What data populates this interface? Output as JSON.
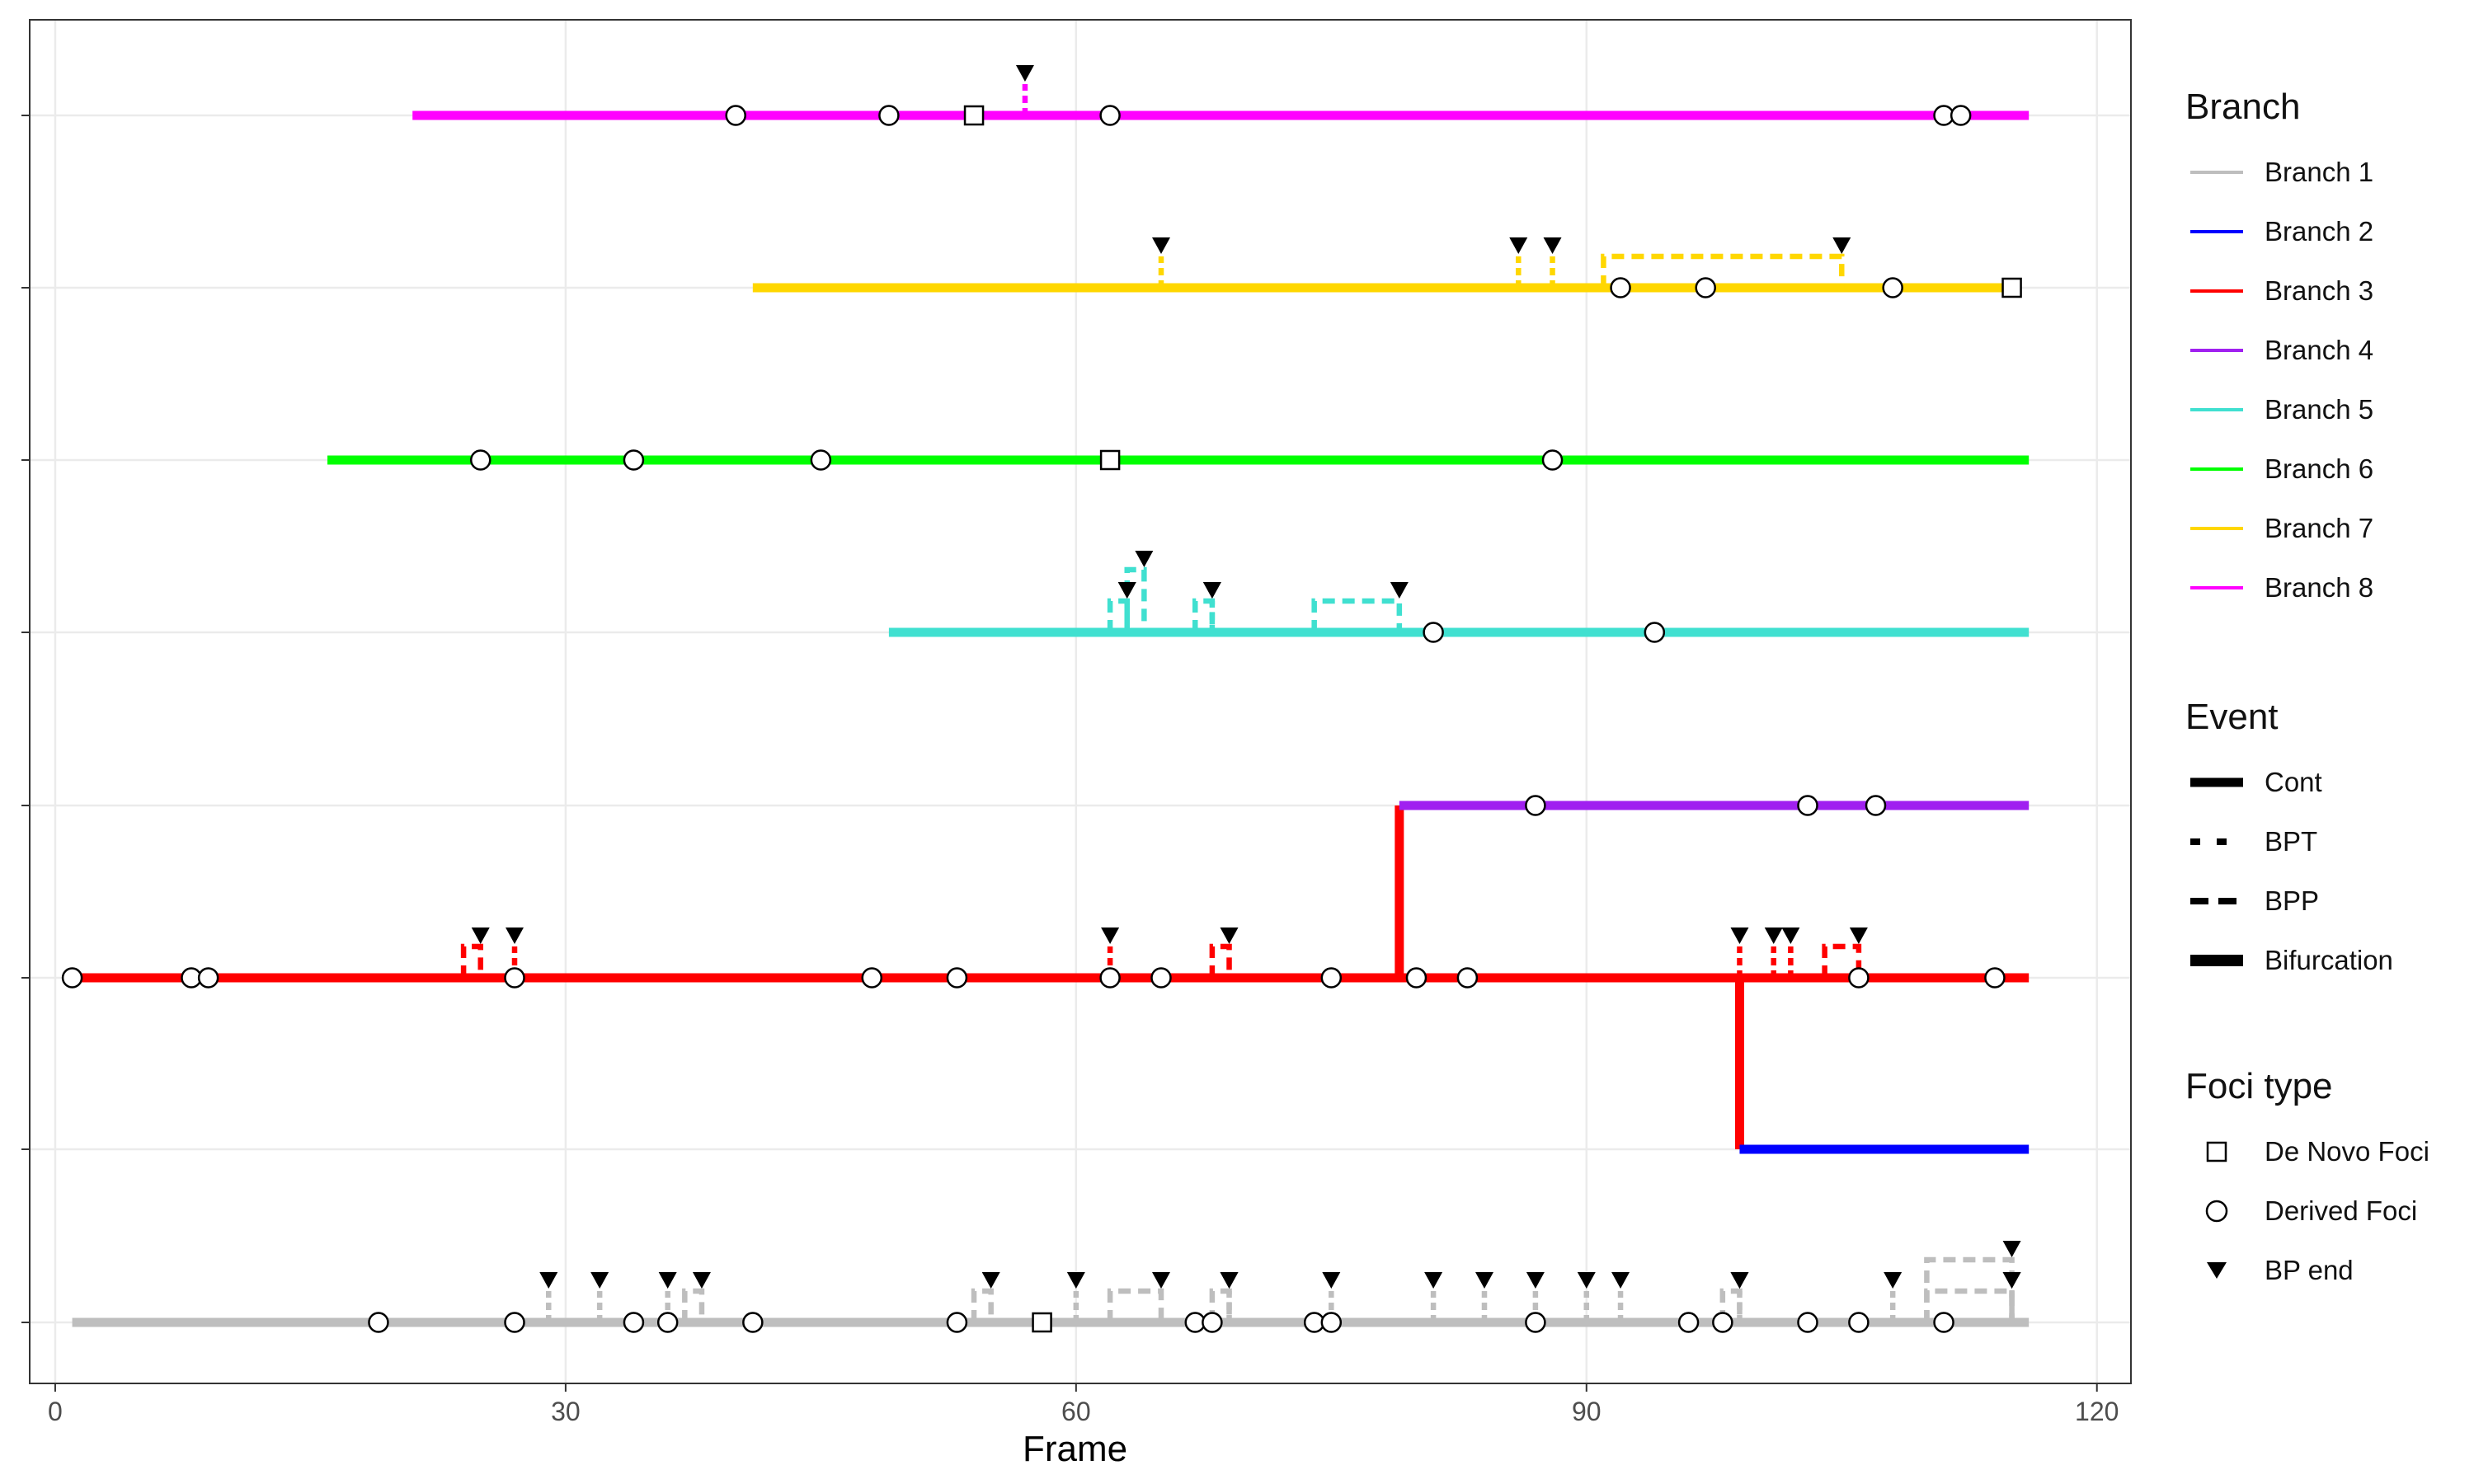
{
  "chart_data": {
    "type": "scatter",
    "xlabel": "Frame",
    "ylabel": "",
    "xlim": [
      -1.5,
      122
    ],
    "x_ticks": [
      0,
      30,
      60,
      90,
      120
    ],
    "grid": true,
    "legend_placement": "right",
    "branches": [
      {
        "name": "Branch 1",
        "color": "#BEBEBE",
        "level": 1,
        "start": 1,
        "end": 116
      },
      {
        "name": "Branch 2",
        "color": "#0000FF",
        "level": 2,
        "start": 99,
        "end": 116
      },
      {
        "name": "Branch 3",
        "color": "#FF0000",
        "level": 3,
        "start": 1,
        "end": 116
      },
      {
        "name": "Branch 4",
        "color": "#A020F0",
        "level": 4,
        "start": 79,
        "end": 116
      },
      {
        "name": "Branch 5",
        "color": "#40E0D0",
        "level": 5,
        "start": 49,
        "end": 116
      },
      {
        "name": "Branch 6",
        "color": "#00FF00",
        "level": 6,
        "start": 16,
        "end": 116
      },
      {
        "name": "Branch 7",
        "color": "#FFD700",
        "level": 7,
        "start": 41,
        "end": 115
      },
      {
        "name": "Branch 8",
        "color": "#FF00FF",
        "level": 8,
        "start": 21,
        "end": 116
      }
    ],
    "bifurcations": [
      {
        "x": 79,
        "from_level": 3,
        "to_level": 4,
        "color": "#FF0000"
      },
      {
        "x": 99,
        "from_level": 3,
        "to_level": 2,
        "color": "#FF0000"
      }
    ],
    "bpt_events": [
      {
        "level": 8,
        "x": 57
      },
      {
        "level": 7,
        "x": 65
      },
      {
        "level": 7,
        "x": 86
      },
      {
        "level": 7,
        "x": 88
      },
      {
        "level": 5,
        "x": 63
      },
      {
        "level": 5,
        "x": 68
      },
      {
        "level": 3,
        "x": 27
      },
      {
        "level": 3,
        "x": 62
      },
      {
        "level": 3,
        "x": 99
      },
      {
        "level": 3,
        "x": 101
      },
      {
        "level": 3,
        "x": 102
      },
      {
        "level": 1,
        "x": 29
      },
      {
        "level": 1,
        "x": 32
      },
      {
        "level": 1,
        "x": 36
      },
      {
        "level": 1,
        "x": 60
      },
      {
        "level": 1,
        "x": 69
      },
      {
        "level": 1,
        "x": 75
      },
      {
        "level": 1,
        "x": 81
      },
      {
        "level": 1,
        "x": 84
      },
      {
        "level": 1,
        "x": 87
      },
      {
        "level": 1,
        "x": 90
      },
      {
        "level": 1,
        "x": 92
      },
      {
        "level": 1,
        "x": 99
      },
      {
        "level": 1,
        "x": 108
      },
      {
        "level": 1,
        "x": 115
      }
    ],
    "bpp_events": [
      {
        "level": 7,
        "x1": 91,
        "x2": 105,
        "h": 1
      },
      {
        "level": 5,
        "x1": 62,
        "x2": 63,
        "h": 1
      },
      {
        "level": 5,
        "x1": 63,
        "x2": 64,
        "h": 2
      },
      {
        "level": 5,
        "x1": 67,
        "x2": 68,
        "h": 1
      },
      {
        "level": 5,
        "x1": 74,
        "x2": 79,
        "h": 1
      },
      {
        "level": 3,
        "x1": 24,
        "x2": 25,
        "h": 1
      },
      {
        "level": 3,
        "x1": 68,
        "x2": 69,
        "h": 1
      },
      {
        "level": 3,
        "x1": 104,
        "x2": 106,
        "h": 1
      },
      {
        "level": 1,
        "x1": 37,
        "x2": 38,
        "h": 1
      },
      {
        "level": 1,
        "x1": 54,
        "x2": 55,
        "h": 1
      },
      {
        "level": 1,
        "x1": 62,
        "x2": 65,
        "h": 1
      },
      {
        "level": 1,
        "x1": 68,
        "x2": 69,
        "h": 1
      },
      {
        "level": 1,
        "x1": 98,
        "x2": 99,
        "h": 1
      },
      {
        "level": 1,
        "x1": 110,
        "x2": 115,
        "h": 1
      },
      {
        "level": 1,
        "x1": 110,
        "x2": 115,
        "h": 2
      }
    ],
    "derived_foci": [
      {
        "level": 8,
        "x": 40
      },
      {
        "level": 8,
        "x": 49
      },
      {
        "level": 8,
        "x": 62
      },
      {
        "level": 8,
        "x": 111
      },
      {
        "level": 8,
        "x": 112
      },
      {
        "level": 7,
        "x": 92
      },
      {
        "level": 7,
        "x": 97
      },
      {
        "level": 7,
        "x": 108
      },
      {
        "level": 6,
        "x": 25
      },
      {
        "level": 6,
        "x": 34
      },
      {
        "level": 6,
        "x": 45
      },
      {
        "level": 6,
        "x": 88
      },
      {
        "level": 5,
        "x": 81
      },
      {
        "level": 5,
        "x": 94
      },
      {
        "level": 4,
        "x": 87
      },
      {
        "level": 4,
        "x": 103
      },
      {
        "level": 4,
        "x": 107
      },
      {
        "level": 3,
        "x": 1
      },
      {
        "level": 3,
        "x": 8
      },
      {
        "level": 3,
        "x": 9
      },
      {
        "level": 3,
        "x": 27
      },
      {
        "level": 3,
        "x": 48
      },
      {
        "level": 3,
        "x": 53
      },
      {
        "level": 3,
        "x": 62
      },
      {
        "level": 3,
        "x": 65
      },
      {
        "level": 3,
        "x": 75
      },
      {
        "level": 3,
        "x": 80
      },
      {
        "level": 3,
        "x": 83
      },
      {
        "level": 3,
        "x": 106
      },
      {
        "level": 3,
        "x": 114
      },
      {
        "level": 1,
        "x": 19
      },
      {
        "level": 1,
        "x": 27
      },
      {
        "level": 1,
        "x": 34
      },
      {
        "level": 1,
        "x": 36
      },
      {
        "level": 1,
        "x": 41
      },
      {
        "level": 1,
        "x": 53
      },
      {
        "level": 1,
        "x": 67
      },
      {
        "level": 1,
        "x": 68
      },
      {
        "level": 1,
        "x": 74
      },
      {
        "level": 1,
        "x": 75
      },
      {
        "level": 1,
        "x": 87
      },
      {
        "level": 1,
        "x": 96
      },
      {
        "level": 1,
        "x": 98
      },
      {
        "level": 1,
        "x": 103
      },
      {
        "level": 1,
        "x": 106
      },
      {
        "level": 1,
        "x": 111
      }
    ],
    "de_novo_foci": [
      {
        "level": 8,
        "x": 54
      },
      {
        "level": 7,
        "x": 115
      },
      {
        "level": 6,
        "x": 62
      },
      {
        "level": 1,
        "x": 58
      }
    ]
  },
  "legend": {
    "branch": {
      "title": "Branch",
      "items": [
        "Branch 1",
        "Branch 2",
        "Branch 3",
        "Branch 4",
        "Branch 5",
        "Branch 6",
        "Branch 7",
        "Branch 8"
      ]
    },
    "event": {
      "title": "Event",
      "items": [
        "Cont",
        "BPT",
        "BPP",
        "Bifurcation"
      ]
    },
    "foci": {
      "title": "Foci type",
      "items": [
        "De Novo Foci",
        "Derived Foci",
        "BP end"
      ]
    }
  }
}
